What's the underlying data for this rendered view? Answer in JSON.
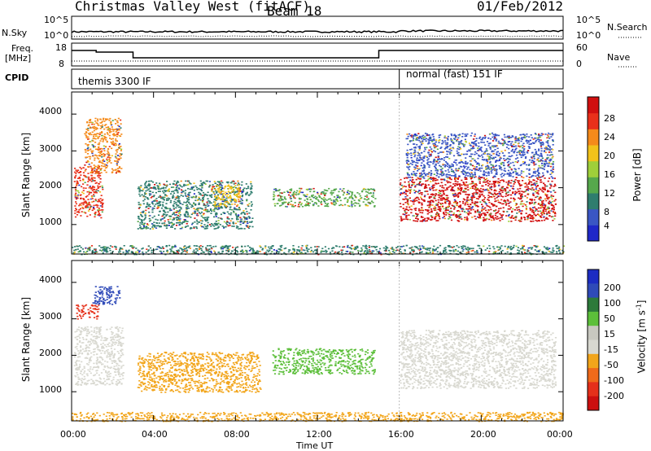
{
  "header": {
    "title": "Christmas Valley West (fitACF)",
    "beam": "Beam 18",
    "date": "01/Feb/2012"
  },
  "nsky_panel": {
    "left_label": "N.Sky",
    "left_ticks": [
      "10^5",
      "10^0"
    ],
    "right_label": "N.Search",
    "right_ticks": [
      "10^5",
      "10^0"
    ]
  },
  "freq_panel": {
    "left_label_line1": "Freq.",
    "left_label_line2": "[MHz]",
    "left_ticks": [
      "18",
      "8"
    ],
    "right_label": "Nave",
    "right_ticks": [
      "60",
      "0"
    ]
  },
  "cpid_panel": {
    "label": "CPID",
    "segments": [
      {
        "start_hour": 0.0,
        "end_hour": 16.0,
        "label": "themis 3300 IF"
      },
      {
        "start_hour": 16.0,
        "end_hour": 24.0,
        "label": "normal (fast) 151 IF"
      }
    ]
  },
  "colors": {
    "power": [
      "#1f28c8",
      "#3a56c4",
      "#2f7d6e",
      "#56a84c",
      "#9fcf3a",
      "#f2c21a",
      "#f58a1a",
      "#e9301a",
      "#d10f0f"
    ],
    "velocity": [
      "#1c2cc2",
      "#2f4ab8",
      "#2d7a3a",
      "#5cbf3a",
      "#c8c8c0",
      "#d8d8d0",
      "#f2a51a",
      "#ef6a1a",
      "#e5301a",
      "#cc0f0f"
    ],
    "ground_scatter": "#c6c6be"
  },
  "chart_data": [
    {
      "type": "heatmap",
      "name": "power",
      "xlabel": "",
      "ylabel": "Slant Range [km]",
      "xlim": [
        0,
        24
      ],
      "ylim": [
        200,
        4600
      ],
      "yticks": [
        1000,
        2000,
        3000,
        4000
      ],
      "xticks_hours": [
        0,
        4,
        8,
        12,
        16,
        20,
        24
      ],
      "colorbar": {
        "label": "Power [dB]",
        "tick_labels": [
          "28",
          "24",
          "20",
          "16",
          "12",
          "8",
          "4"
        ],
        "range": [
          0,
          32
        ]
      },
      "regions": [
        {
          "t0": 0.1,
          "t1": 1.5,
          "r0": 1200,
          "r1": 2600,
          "level": 28
        },
        {
          "t0": 0.6,
          "t1": 2.4,
          "r0": 2400,
          "r1": 3900,
          "level": 22
        },
        {
          "t0": 3.2,
          "t1": 8.8,
          "r0": 900,
          "r1": 2200,
          "level": 10
        },
        {
          "t0": 6.8,
          "t1": 8.2,
          "r0": 1500,
          "r1": 2100,
          "level": 18
        },
        {
          "t0": 9.8,
          "t1": 14.8,
          "r0": 1500,
          "r1": 2000,
          "level": 12
        },
        {
          "t0": 16.0,
          "t1": 23.6,
          "r0": 1100,
          "r1": 2300,
          "level": 30
        },
        {
          "t0": 16.3,
          "t1": 23.5,
          "r0": 2300,
          "r1": 3500,
          "level": 6
        },
        {
          "t0": 0.0,
          "t1": 24.0,
          "r0": 200,
          "r1": 450,
          "level": 10
        }
      ]
    },
    {
      "type": "heatmap",
      "name": "velocity",
      "xlabel": "Time UT",
      "ylabel": "Slant Range [km]",
      "xlim": [
        0,
        24
      ],
      "ylim": [
        200,
        4600
      ],
      "yticks": [
        1000,
        2000,
        3000,
        4000
      ],
      "xtick_labels": [
        "00:00",
        "04:00",
        "08:00",
        "12:00",
        "16:00",
        "20:00",
        "00:00"
      ],
      "colorbar": {
        "label": "Velocity [m s",
        "label_sup": "-1",
        "label_end": "]",
        "tick_labels": [
          "200",
          "100",
          "50",
          "15",
          "-15",
          "-50",
          "-100",
          "-200"
        ],
        "range": [
          -250,
          250
        ]
      },
      "regions": [
        {
          "t0": 0.1,
          "t1": 2.5,
          "r0": 1200,
          "r1": 2800,
          "level": 0
        },
        {
          "t0": 0.2,
          "t1": 1.3,
          "r0": 3000,
          "r1": 3400,
          "level": -180
        },
        {
          "t0": 1.0,
          "t1": 2.4,
          "r0": 3400,
          "r1": 3900,
          "level": 180
        },
        {
          "t0": 3.2,
          "t1": 9.2,
          "r0": 1000,
          "r1": 2100,
          "level": -60
        },
        {
          "t0": 9.8,
          "t1": 14.8,
          "r0": 1500,
          "r1": 2200,
          "level": 60
        },
        {
          "t0": 16.0,
          "t1": 23.6,
          "r0": 1100,
          "r1": 2700,
          "level": 0
        },
        {
          "t0": 0.0,
          "t1": 24.0,
          "r0": 200,
          "r1": 450,
          "level": -50
        }
      ]
    }
  ]
}
